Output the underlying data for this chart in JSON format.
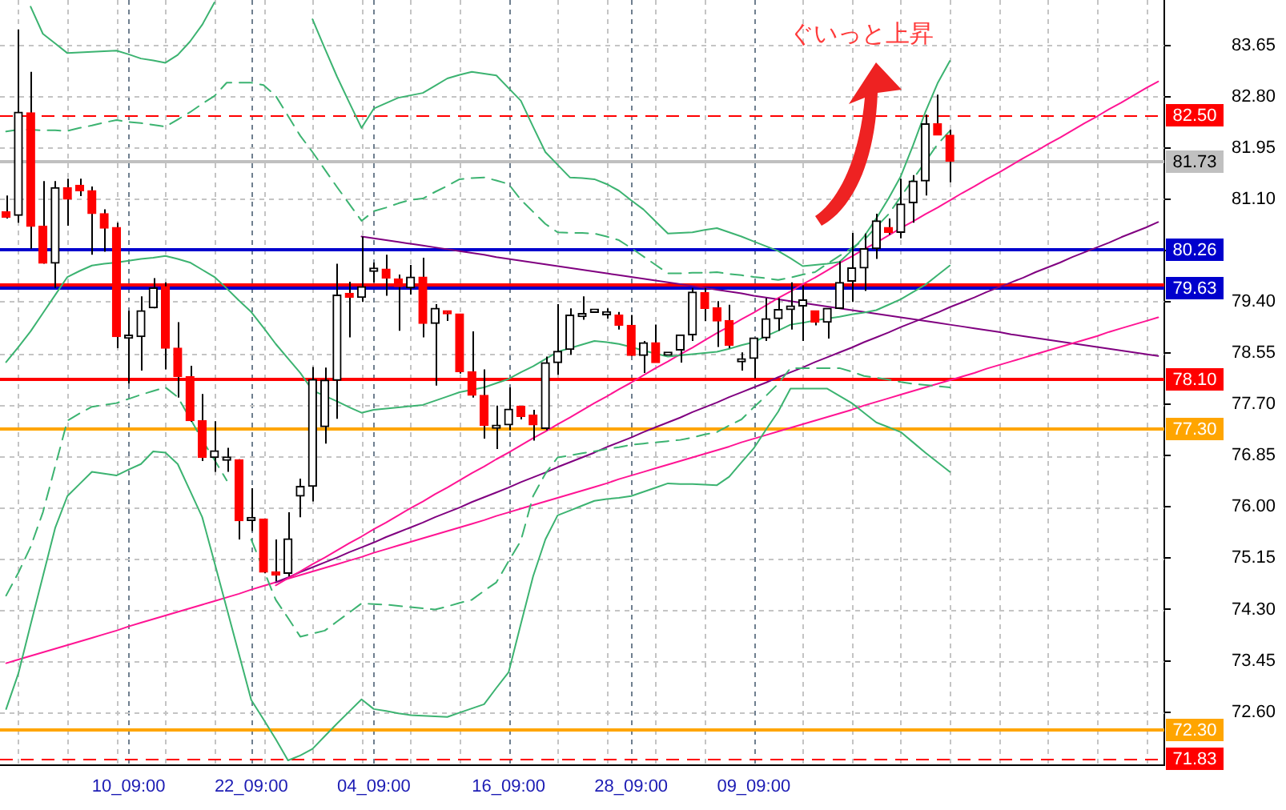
{
  "chart_data": {
    "type": "candlestick",
    "categories": [
      null,
      null,
      null,
      null,
      null,
      null,
      null,
      null,
      null,
      null,
      "10_09:00",
      null,
      null,
      null,
      null,
      null,
      null,
      null,
      null,
      null,
      "22_09:00",
      null,
      null,
      null,
      null,
      null,
      null,
      null,
      null,
      null,
      "04_09:00",
      null,
      null,
      null,
      null,
      null,
      null,
      null,
      null,
      null,
      null,
      "16_09:00",
      null,
      null,
      null,
      null,
      null,
      null,
      null,
      null,
      null,
      "28_09:00",
      null,
      null,
      null,
      null,
      null,
      null,
      null,
      null,
      null,
      "09_09:00",
      null,
      null,
      null,
      null,
      null,
      null,
      null,
      null,
      null,
      null,
      null,
      null,
      null,
      null,
      null,
      null,
      null,
      null,
      null,
      null,
      null,
      null,
      null,
      null,
      null,
      null,
      null,
      null,
      null,
      null,
      null,
      null,
      null
    ],
    "ohlc": [
      [
        80.89,
        81.16,
        80.78,
        80.8
      ],
      [
        80.83,
        83.91,
        80.71,
        82.54
      ],
      [
        82.53,
        83.21,
        80.28,
        80.65
      ],
      [
        80.65,
        81.4,
        80.03,
        80.04
      ],
      [
        80.04,
        81.4,
        79.63,
        81.29
      ],
      [
        81.29,
        81.44,
        80.66,
        81.1
      ],
      [
        81.33,
        81.44,
        81.15,
        81.24
      ],
      [
        81.24,
        81.31,
        80.18,
        80.86
      ],
      [
        80.86,
        80.93,
        80.23,
        80.62
      ],
      [
        80.63,
        80.71,
        78.63,
        78.82
      ],
      [
        78.82,
        79.25,
        78.04,
        78.82
      ],
      [
        78.82,
        79.49,
        78.26,
        79.25
      ],
      [
        79.3,
        79.79,
        79.29,
        79.63
      ],
      [
        79.65,
        79.72,
        78.28,
        78.63
      ],
      [
        78.63,
        79.06,
        77.81,
        78.16
      ],
      [
        78.16,
        78.34,
        77.41,
        77.43
      ],
      [
        77.43,
        77.87,
        76.76,
        76.82
      ],
      [
        76.82,
        77.42,
        76.58,
        76.93
      ],
      [
        76.8,
        76.98,
        76.58,
        76.8
      ],
      [
        76.78,
        76.79,
        75.46,
        75.77
      ],
      [
        75.8,
        76.31,
        75.6,
        75.8
      ],
      [
        75.8,
        75.81,
        74.9,
        74.92
      ],
      [
        74.92,
        75.46,
        74.77,
        74.87
      ],
      [
        74.9,
        75.91,
        74.85,
        75.47
      ],
      [
        76.18,
        76.47,
        75.83,
        76.34
      ],
      [
        76.34,
        78.32,
        76.09,
        78.11
      ],
      [
        77.33,
        78.31,
        77.05,
        78.1
      ],
      [
        78.1,
        80.03,
        77.46,
        79.51
      ],
      [
        79.54,
        79.73,
        78.81,
        79.47
      ],
      [
        79.47,
        80.48,
        79.4,
        79.65
      ],
      [
        79.93,
        80.05,
        79.72,
        79.93
      ],
      [
        79.94,
        80.18,
        79.5,
        79.79
      ],
      [
        79.78,
        79.85,
        78.92,
        79.65
      ],
      [
        79.63,
        80.01,
        79.52,
        79.81
      ],
      [
        79.81,
        80.13,
        78.81,
        79.04
      ],
      [
        79.04,
        79.36,
        78.01,
        79.29
      ],
      [
        79.25,
        79.25,
        79.08,
        79.2
      ],
      [
        79.2,
        79.2,
        78.21,
        78.24
      ],
      [
        78.24,
        78.91,
        77.81,
        77.85
      ],
      [
        77.85,
        78.28,
        77.13,
        77.35
      ],
      [
        77.33,
        77.68,
        76.96,
        77.33
      ],
      [
        77.36,
        77.98,
        77.27,
        77.62
      ],
      [
        77.67,
        77.67,
        77.45,
        77.5
      ],
      [
        77.52,
        77.61,
        77.1,
        77.36
      ],
      [
        77.3,
        78.49,
        77.27,
        78.39
      ],
      [
        78.39,
        79.36,
        78.19,
        78.58
      ],
      [
        78.61,
        79.29,
        78.52,
        79.18
      ],
      [
        79.18,
        79.49,
        79.1,
        79.18
      ],
      [
        79.25,
        79.25,
        79.25,
        79.25
      ],
      [
        79.21,
        79.29,
        79.12,
        79.21
      ],
      [
        79.18,
        79.23,
        78.94,
        79.01
      ],
      [
        79.01,
        79.18,
        78.5,
        78.51
      ],
      [
        78.51,
        78.75,
        78.22,
        78.72
      ],
      [
        78.72,
        79.02,
        78.39,
        78.39
      ],
      [
        78.54,
        78.54,
        78.54,
        78.54
      ],
      [
        78.6,
        78.85,
        78.39,
        78.85
      ],
      [
        78.85,
        79.63,
        78.75,
        79.56
      ],
      [
        79.55,
        79.63,
        79.08,
        79.29
      ],
      [
        79.3,
        79.41,
        78.65,
        79.08
      ],
      [
        79.09,
        79.35,
        78.63,
        78.68
      ],
      [
        78.43,
        78.56,
        78.26,
        78.43
      ],
      [
        78.46,
        78.8,
        78.13,
        78.8
      ],
      [
        78.8,
        79.46,
        78.75,
        79.12
      ],
      [
        79.12,
        79.46,
        78.92,
        79.27
      ],
      [
        79.27,
        79.72,
        78.94,
        79.33
      ],
      [
        79.33,
        79.67,
        78.75,
        79.43
      ],
      [
        79.25,
        79.25,
        79.01,
        79.06
      ],
      [
        79.06,
        79.29,
        78.79,
        79.29
      ],
      [
        79.29,
        80.07,
        79.29,
        79.72
      ],
      [
        79.74,
        80.54,
        79.4,
        79.96
      ],
      [
        79.96,
        80.53,
        79.58,
        80.28
      ],
      [
        80.28,
        80.86,
        80.11,
        80.74
      ],
      [
        80.63,
        80.78,
        80.51,
        80.55
      ],
      [
        80.55,
        81.44,
        80.45,
        81.02
      ],
      [
        81.04,
        81.5,
        80.71,
        81.4
      ],
      [
        81.4,
        82.5,
        81.16,
        82.35
      ],
      [
        82.35,
        82.83,
        82.16,
        82.16
      ],
      [
        82.16,
        82.25,
        81.38,
        81.73
      ],
      null,
      null,
      null,
      null,
      null,
      null,
      null,
      null,
      null,
      null,
      null,
      null,
      null,
      null,
      null,
      null,
      null
    ],
    "series": [
      {
        "type": "line",
        "color": "#3cb371",
        "values": [
          null,
          null,
          84.29,
          83.84,
          83.68,
          83.52,
          83.53,
          83.54,
          83.55,
          83.56,
          83.5,
          83.43,
          83.4,
          83.36,
          83.49,
          83.71,
          83.99,
          84.36,
          null,
          null,
          null,
          null,
          null,
          null,
          null,
          84.08,
          83.6,
          83.13,
          82.7,
          82.28,
          82.6,
          82.69,
          82.78,
          82.82,
          82.86,
          82.98,
          83.1,
          83.16,
          83.21,
          83.18,
          83.15,
          82.94,
          82.73,
          82.3,
          81.88,
          81.67,
          81.46,
          81.45,
          81.43,
          81.35,
          81.24,
          81.08,
          80.93,
          80.73,
          80.53,
          80.54,
          80.55,
          80.59,
          80.62,
          80.55,
          80.48,
          80.4,
          80.32,
          80.24,
          80.12,
          79.99,
          80.01,
          80.03,
          80.06,
          80.25,
          80.48,
          80.78,
          81.11,
          81.48,
          81.99,
          82.54,
          83.02,
          83.39,
          null,
          null,
          null,
          null,
          null,
          null,
          null,
          null,
          null,
          null,
          null,
          null,
          null,
          null,
          null,
          null,
          null
        ]
      },
      {
        "type": "line",
        "color": "#3cb371",
        "line_style": "dashed",
        "values": [
          82.22,
          82.25,
          82.25,
          82.24,
          82.24,
          82.23,
          82.28,
          82.32,
          82.37,
          82.41,
          82.38,
          82.36,
          82.33,
          82.3,
          82.42,
          82.54,
          82.68,
          82.81,
          83.03,
          83.03,
          83.03,
          82.99,
          82.81,
          82.48,
          82.15,
          81.88,
          81.59,
          81.3,
          81.02,
          80.74,
          80.9,
          80.96,
          81.03,
          81.09,
          81.11,
          81.22,
          81.32,
          81.43,
          81.45,
          81.46,
          81.41,
          81.35,
          81.09,
          80.89,
          80.69,
          80.55,
          80.54,
          80.54,
          80.53,
          80.48,
          80.42,
          80.29,
          80.15,
          80.01,
          79.87,
          79.87,
          79.88,
          79.88,
          79.89,
          79.86,
          79.84,
          79.81,
          79.79,
          79.76,
          79.8,
          79.85,
          79.89,
          80.03,
          80.16,
          80.29,
          80.42,
          80.64,
          80.85,
          81.14,
          81.43,
          81.72,
          82.01,
          82.23,
          null,
          null,
          null,
          null,
          null,
          null,
          null,
          null,
          null,
          null,
          null,
          null,
          null,
          null,
          null,
          null,
          null
        ]
      },
      {
        "type": "line",
        "color": "#3cb371",
        "values": [
          78.4,
          78.65,
          78.91,
          79.21,
          79.51,
          79.81,
          79.91,
          80.0,
          80.03,
          80.05,
          80.08,
          80.11,
          80.13,
          80.16,
          80.11,
          80.05,
          79.93,
          79.81,
          79.62,
          79.42,
          79.23,
          78.97,
          78.7,
          78.46,
          78.22,
          77.93,
          77.84,
          77.75,
          77.65,
          77.56,
          77.61,
          77.63,
          77.65,
          77.67,
          77.69,
          77.76,
          77.83,
          77.9,
          77.94,
          77.98,
          78.05,
          78.12,
          78.23,
          78.33,
          78.45,
          78.57,
          78.63,
          78.69,
          78.75,
          78.73,
          78.7,
          78.65,
          78.59,
          78.54,
          78.49,
          78.51,
          78.53,
          78.55,
          78.57,
          78.62,
          78.68,
          78.73,
          78.83,
          78.92,
          79.02,
          79.05,
          79.09,
          79.12,
          79.15,
          79.19,
          79.22,
          79.26,
          79.35,
          79.44,
          79.56,
          79.68,
          79.84,
          80.0,
          null,
          null,
          null,
          null,
          null,
          null,
          null,
          null,
          null,
          null,
          null,
          null,
          null,
          null,
          null,
          null,
          null
        ]
      },
      {
        "type": "line",
        "color": "#3cb371",
        "line_style": "dashed",
        "values": [
          74.53,
          74.91,
          75.34,
          75.91,
          76.67,
          77.43,
          77.55,
          77.66,
          77.69,
          77.72,
          77.79,
          77.86,
          77.92,
          77.98,
          77.82,
          77.47,
          77.11,
          76.78,
          76.44,
          null,
          75.46,
          74.96,
          74.46,
          74.16,
          73.85,
          73.9,
          73.95,
          74.1,
          74.25,
          74.4,
          74.39,
          74.38,
          74.36,
          74.34,
          74.32,
          74.3,
          74.35,
          74.41,
          74.46,
          74.61,
          74.75,
          75.1,
          75.44,
          76.18,
          76.55,
          76.82,
          76.85,
          76.89,
          76.92,
          76.96,
          76.99,
          77.03,
          77.05,
          77.07,
          77.09,
          77.11,
          77.15,
          77.2,
          77.24,
          77.35,
          77.45,
          77.65,
          77.84,
          78.04,
          78.3,
          78.3,
          78.3,
          78.3,
          78.3,
          78.24,
          78.17,
          78.14,
          78.11,
          78.07,
          78.04,
          78.02,
          78.0,
          77.98,
          null,
          null,
          null,
          null,
          null,
          null,
          null,
          null,
          null,
          null,
          null,
          null,
          null,
          null,
          null,
          null,
          null
        ]
      },
      {
        "type": "line",
        "color": "#3cb371",
        "values": [
          72.65,
          73.24,
          74.05,
          74.85,
          75.65,
          76.18,
          76.38,
          76.58,
          76.55,
          76.52,
          76.62,
          76.71,
          76.92,
          76.9,
          76.71,
          76.27,
          75.83,
          75.08,
          74.32,
          73.56,
          72.8,
          72.48,
          72.15,
          71.8,
          71.88,
          71.99,
          72.2,
          72.41,
          72.61,
          72.81,
          72.65,
          72.62,
          72.58,
          72.55,
          72.54,
          72.53,
          72.52,
          72.59,
          72.66,
          72.73,
          73.0,
          73.26,
          74.06,
          74.85,
          75.46,
          75.86,
          75.94,
          76.02,
          76.1,
          76.13,
          76.15,
          76.18,
          76.25,
          76.32,
          76.39,
          76.38,
          76.38,
          76.37,
          76.36,
          76.5,
          76.74,
          76.97,
          77.28,
          77.58,
          77.96,
          77.96,
          77.96,
          77.96,
          77.84,
          77.72,
          77.56,
          77.4,
          77.32,
          77.24,
          77.07,
          76.9,
          76.74,
          76.58,
          null,
          null,
          null,
          null,
          null,
          null,
          null,
          null,
          null,
          null,
          null,
          null,
          null,
          null,
          null,
          null,
          null
        ]
      },
      {
        "type": "line",
        "color": "#ff1493",
        "values": [
          null,
          null,
          null,
          null,
          null,
          null,
          null,
          null,
          null,
          null,
          null,
          null,
          null,
          null,
          null,
          null,
          null,
          null,
          null,
          null,
          null,
          null,
          74.7,
          74.82,
          74.93,
          75.05,
          75.16,
          75.28,
          75.4,
          75.51,
          75.63,
          75.74,
          75.86,
          75.98,
          76.09,
          76.21,
          76.32,
          76.44,
          76.56,
          76.67,
          76.79,
          76.9,
          77.02,
          77.14,
          77.25,
          77.37,
          77.48,
          77.6,
          77.72,
          77.83,
          77.95,
          78.06,
          78.18,
          78.3,
          78.41,
          78.53,
          78.64,
          78.76,
          78.88,
          78.99,
          79.11,
          79.22,
          79.34,
          79.46,
          79.57,
          79.69,
          79.8,
          79.92,
          80.04,
          80.15,
          80.27,
          80.38,
          80.5,
          80.62,
          80.73,
          80.85,
          80.96,
          81.08,
          81.2,
          81.31,
          81.43,
          81.54,
          81.66,
          81.78,
          81.89,
          82.01,
          82.12,
          82.24,
          82.36,
          82.47,
          82.59,
          82.7,
          82.82,
          82.94,
          83.05
        ]
      },
      {
        "type": "line",
        "color": "#800080",
        "values": [
          null,
          null,
          null,
          null,
          null,
          null,
          null,
          null,
          null,
          null,
          null,
          null,
          null,
          null,
          null,
          null,
          null,
          null,
          null,
          null,
          null,
          null,
          74.75,
          74.83,
          74.92,
          75.0,
          75.08,
          75.16,
          75.25,
          75.33,
          75.41,
          75.5,
          75.58,
          75.66,
          75.74,
          75.83,
          75.91,
          75.99,
          76.08,
          76.16,
          76.24,
          76.32,
          76.41,
          76.49,
          76.57,
          76.66,
          76.74,
          76.82,
          76.9,
          76.99,
          77.07,
          77.15,
          77.24,
          77.32,
          77.4,
          77.48,
          77.57,
          77.65,
          77.73,
          77.82,
          77.9,
          77.98,
          78.06,
          78.15,
          78.23,
          78.31,
          78.4,
          78.48,
          78.56,
          78.64,
          78.73,
          78.81,
          78.89,
          78.98,
          79.06,
          79.14,
          79.22,
          79.31,
          79.39,
          79.47,
          79.56,
          79.64,
          79.72,
          79.8,
          79.89,
          79.97,
          80.05,
          80.14,
          80.22,
          80.3,
          80.38,
          80.47,
          80.55,
          80.63,
          80.72
        ]
      },
      {
        "type": "line",
        "color": "#ff1493",
        "values": [
          73.41,
          73.47,
          73.53,
          73.59,
          73.65,
          73.71,
          73.77,
          73.83,
          73.89,
          73.95,
          74.02,
          74.08,
          74.14,
          74.2,
          74.26,
          74.32,
          74.38,
          74.44,
          74.5,
          74.56,
          74.63,
          74.69,
          74.75,
          74.81,
          74.87,
          74.93,
          74.99,
          75.05,
          75.11,
          75.17,
          75.24,
          75.3,
          75.36,
          75.42,
          75.48,
          75.54,
          75.6,
          75.66,
          75.72,
          75.78,
          75.85,
          75.91,
          75.97,
          76.03,
          76.09,
          76.15,
          76.21,
          76.27,
          76.33,
          76.39,
          76.46,
          76.52,
          76.58,
          76.64,
          76.7,
          76.76,
          76.82,
          76.88,
          76.94,
          77.0,
          77.07,
          77.13,
          77.19,
          77.25,
          77.31,
          77.37,
          77.43,
          77.49,
          77.55,
          77.61,
          77.68,
          77.74,
          77.8,
          77.86,
          77.92,
          77.98,
          78.04,
          78.1,
          78.16,
          78.22,
          78.29,
          78.35,
          78.41,
          78.47,
          78.53,
          78.59,
          78.65,
          78.71,
          78.77,
          78.83,
          78.9,
          78.96,
          79.02,
          79.08,
          79.14
        ]
      },
      {
        "type": "line",
        "color": "#800080",
        "values": [
          null,
          null,
          null,
          null,
          null,
          null,
          null,
          null,
          null,
          null,
          null,
          null,
          null,
          null,
          null,
          null,
          null,
          null,
          null,
          null,
          null,
          null,
          null,
          null,
          null,
          null,
          null,
          null,
          null,
          80.48,
          80.45,
          80.42,
          80.39,
          80.36,
          80.33,
          80.3,
          80.27,
          80.24,
          80.21,
          80.18,
          80.14,
          80.11,
          80.08,
          80.05,
          80.02,
          79.99,
          79.96,
          79.93,
          79.9,
          79.87,
          79.84,
          79.81,
          79.78,
          79.75,
          79.72,
          79.69,
          79.66,
          79.63,
          79.6,
          79.57,
          79.54,
          79.5,
          79.47,
          79.44,
          79.41,
          79.38,
          79.35,
          79.32,
          79.29,
          79.26,
          79.23,
          79.2,
          79.17,
          79.14,
          79.11,
          79.08,
          79.05,
          79.02,
          78.99,
          78.96,
          78.93,
          78.9,
          78.86,
          78.83,
          78.8,
          78.77,
          78.74,
          78.71,
          78.68,
          78.65,
          78.62,
          78.59,
          78.56,
          78.53,
          78.5
        ]
      }
    ],
    "ref_lines": [
      {
        "axis": "y",
        "value": 82.5,
        "label": "82.50",
        "color": "#ff0000",
        "line_style": "dashed"
      },
      {
        "axis": "y",
        "value": 81.73,
        "label": "81.73",
        "color": "#c0c0c0"
      },
      {
        "axis": "y",
        "value": 80.26,
        "label": "80.26",
        "color": "#0000cd"
      },
      {
        "axis": "y",
        "value": 79.68,
        "color": "#ff0000"
      },
      {
        "axis": "y",
        "value": 79.63,
        "label": "79.63",
        "color": "#0000cd"
      },
      {
        "axis": "y",
        "value": 78.1,
        "label": "78.10",
        "color": "#ff0000"
      },
      {
        "axis": "y",
        "value": 77.3,
        "label": "77.30",
        "color": "#ffa500"
      },
      {
        "axis": "y",
        "value": 72.3,
        "label": "72.30",
        "color": "#ffa500"
      },
      {
        "axis": "y",
        "value": 71.83,
        "label": "71.83",
        "color": "#ff0000",
        "line_style": "dashed"
      }
    ],
    "annotations": [
      "ぐいっと上昇"
    ],
    "ylim": [
      71.72,
      84.4
    ],
    "yticks": [
      83.65,
      {
        "value": 82.8,
        "label": "82.80"
      },
      81.95,
      {
        "value": 81.1,
        "label": "81.10"
      },
      {
        "value": 80.25,
        "label": null
      },
      {
        "value": 79.4,
        "label": "79.40"
      },
      78.55,
      {
        "value": 77.7,
        "label": "77.70"
      },
      76.85,
      {
        "value": 76,
        "label": "76.00"
      },
      75.15,
      {
        "value": 74.3,
        "label": "74.30"
      },
      73.45,
      {
        "value": 72.6,
        "label": "72.60"
      }
    ],
    "grid": true
  }
}
